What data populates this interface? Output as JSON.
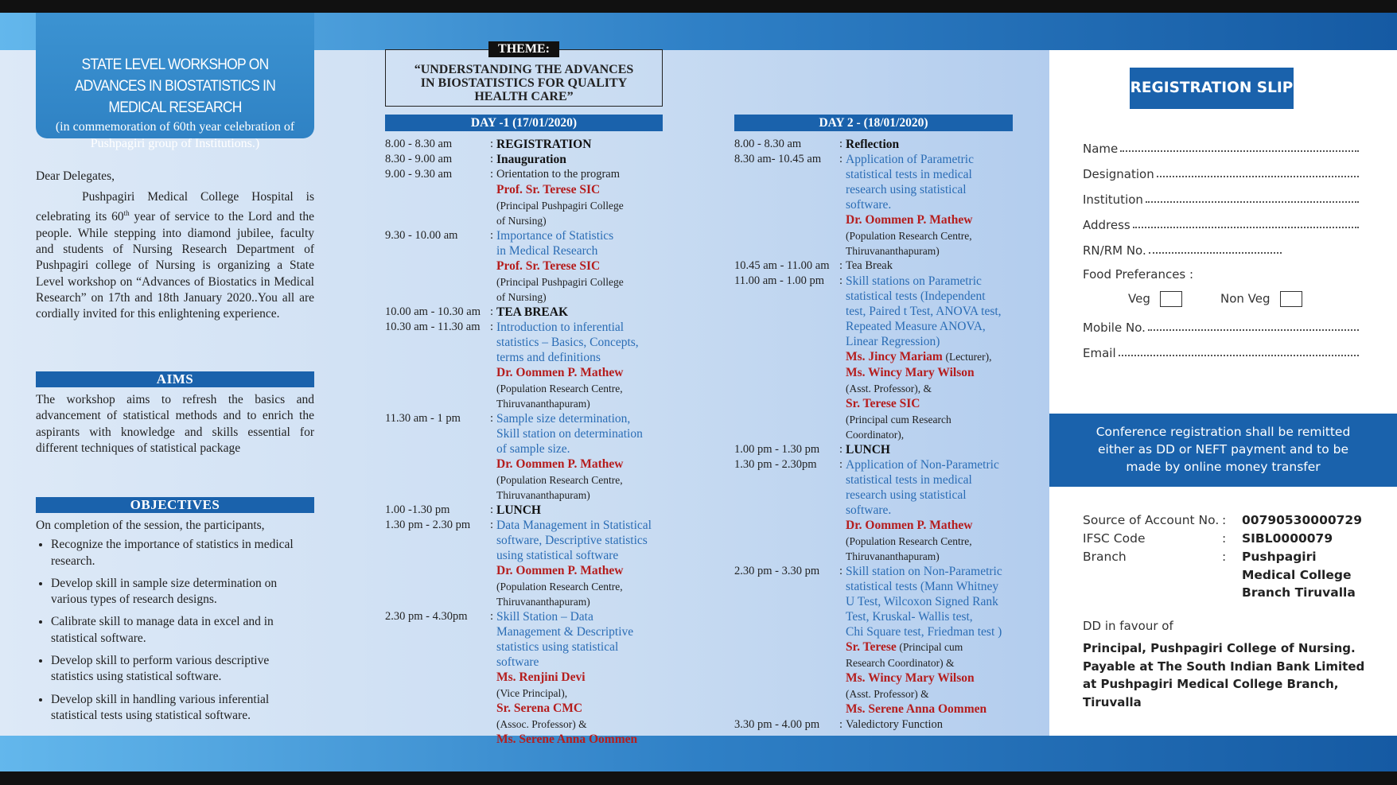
{
  "header": {
    "title": "STATE LEVEL WORKSHOP ON ADVANCES IN BIOSTATISTICS IN MEDICAL RESEARCH",
    "subtitle": "(in commemoration of 60th year celebration of Pushpagiri group of Institutions.)"
  },
  "letter": {
    "salutation": "Dear Delegates,",
    "body": [
      "Pushpagiri Medical College Hospital is celebrating its 60",
      "th",
      " year of service to the Lord and the people. While stepping into diamond jubilee, faculty and students of  Nursing Research Department of Pushpagiri college of Nursing is organizing a State Level workshop on “Advances of Biostatics in Medical Research” on 17th and 18th January 2020..You all are cordially invited for this enlightening experience."
    ]
  },
  "aims": {
    "heading": "AIMS",
    "text": "The workshop aims to refresh the basics and advancement of statistical methods and to enrich the aspirants with knowledge and skills essential for different techniques of statistical package"
  },
  "objectives": {
    "heading": "OBJECTIVES",
    "intro": "On completion of the session, the participants,",
    "items": [
      "Recognize the importance of statistics in medical research.",
      "Develop skill in sample size determination on various types of research designs.",
      "Calibrate skill to manage data in excel and in statistical software.",
      "Develop skill to perform various descriptive statistics using statistical software.",
      "Develop skill in handling various inferential statistical tests using statistical software."
    ]
  },
  "theme": {
    "label": "THEME:",
    "text": "“UNDERSTANDING THE ADVANCES IN BIOSTATISTICS FOR QUALITY HEALTH CARE”"
  },
  "day1": {
    "heading": "DAY -1 (17/01/2020)",
    "separator": ":",
    "sessions": [
      {
        "time": "8.00 - 8.30 am",
        "title": "REGISTRATION"
      },
      {
        "time": "8.30 - 9.00 am",
        "title": "Inauguration"
      },
      {
        "time": "9.00 - 9.30 am",
        "plain": "Orientation to the program",
        "speakers": [
          {
            "name": "Prof. Sr. Terese SIC",
            "role": [
              "(Principal Pushpagiri College",
              "of Nursing)"
            ]
          }
        ]
      },
      {
        "time": "9.30 - 10.00 am",
        "topic": [
          "Importance of Statistics",
          "in Medical Research"
        ],
        "speakers": [
          {
            "name": "Prof. Sr. Terese SIC",
            "role": [
              "(Principal Pushpagiri College",
              "of Nursing)"
            ]
          }
        ]
      },
      {
        "time": "10.00 am - 10.30 am",
        "title": "TEA BREAK"
      },
      {
        "time": "10.30 am - 11.30 am",
        "topic": [
          "Introduction to inferential",
          "statistics – Basics, Concepts,",
          "terms and definitions"
        ],
        "speakers": [
          {
            "name": "Dr. Oommen  P. Mathew",
            "role": [
              "(Population Research Centre,",
              "Thiruvananthapuram)"
            ]
          }
        ]
      },
      {
        "time": "11.30 am - 1 pm",
        "topic": [
          "Sample size determination,",
          "Skill station on determination",
          "of sample size."
        ],
        "speakers": [
          {
            "name": "Dr. Oommen  P. Mathew",
            "role": [
              "(Population Research Centre,",
              "Thiruvananthapuram)"
            ]
          }
        ]
      },
      {
        "time": "1.00 -1.30 pm",
        "title": "LUNCH"
      },
      {
        "time": "1.30 pm - 2.30 pm",
        "topic": [
          "Data Management in Statistical",
          "software, Descriptive statistics",
          "using statistical software"
        ],
        "speakers": [
          {
            "name": "Dr. Oommen  P. Mathew",
            "role": [
              "(Population Research Centre,",
              "Thiruvananthapuram)"
            ]
          }
        ]
      },
      {
        "time": "2.30 pm - 4.30pm",
        "topic": [
          "Skill Station – Data",
          "Management & Descriptive",
          "statistics using statistical",
          "software"
        ],
        "speakers": [
          {
            "name": "Ms. Renjini Devi",
            "role": [
              "(Vice Principal),"
            ]
          },
          {
            "name": "Sr. Serena CMC",
            "role": [
              "(Assoc. Professor) &"
            ]
          },
          {
            "name": "Ms. Serene Anna Oommen"
          }
        ]
      }
    ]
  },
  "day2": {
    "heading": "DAY 2  - (18/01/2020)",
    "separator": ":",
    "sessions": [
      {
        "time": "8.00 - 8.30 am",
        "title": "Reflection"
      },
      {
        "time": "8.30 am- 10.45 am",
        "topic": [
          "Application of Parametric",
          "statistical tests in medical",
          "research using statistical",
          "software."
        ],
        "speakers": [
          {
            "name": "Dr. Oommen  P. Mathew",
            "role": [
              "(Population Research Centre,",
              "Thiruvananthapuram)"
            ]
          }
        ]
      },
      {
        "time": "10.45 am - 11.00 am",
        "plain": "Tea Break"
      },
      {
        "time": "11.00 am - 1.00 pm",
        "topic": [
          "Skill stations on Parametric",
          "statistical tests (Independent",
          "test, Paired t Test, ANOVA test,",
          "Repeated Measure ANOVA,",
          "Linear Regression)"
        ],
        "speakers": [
          {
            "name": "Ms. Jincy Mariam",
            "suffix": "(Lecturer),"
          },
          {
            "name": "Ms. Wincy Mary Wilson",
            "role": [
              "(Asst. Professor), &"
            ]
          },
          {
            "name": "Sr. Terese SIC",
            "role": [
              "(Principal cum Research",
              "Coordinator),"
            ]
          }
        ]
      },
      {
        "time": "1.00 pm - 1.30 pm",
        "title": "LUNCH"
      },
      {
        "time": "1.30 pm - 2.30pm",
        "topic": [
          "Application of Non-Parametric",
          "statistical tests in medical",
          "research using statistical",
          "software."
        ],
        "speakers": [
          {
            "name": "Dr. Oommen  P. Mathew",
            "role": [
              "(Population Research Centre,",
              "Thiruvananthapuram)"
            ]
          }
        ]
      },
      {
        "time": "2.30 pm - 3.30 pm",
        "topic": [
          "Skill station on  Non-Parametric",
          "statistical tests (Mann Whitney",
          "U Test, Wilcoxon Signed Rank",
          "Test, Kruskal- Wallis test,",
          "Chi Square test, Friedman test )"
        ],
        "speakers": [
          {
            "name": "Sr. Terese",
            "suffix": "(Principal cum",
            "role": [
              "Research Coordinator) &"
            ]
          },
          {
            "name": "Ms. Wincy Mary Wilson",
            "role": [
              "(Asst. Professor) &"
            ]
          },
          {
            "name": "Ms. Serene Anna Oommen"
          }
        ]
      },
      {
        "time": "3.30 pm - 4.00 pm",
        "plain": "Valedictory Function"
      }
    ]
  },
  "registration": {
    "title": "REGISTRATION SLIP",
    "fields_top": [
      "Name",
      "Designation",
      "Institution",
      "Address",
      "RN/RM No."
    ],
    "food_label": "Food Preferances :",
    "food_options": [
      "Veg",
      "Non Veg"
    ],
    "fields_bottom": [
      "Mobile No.",
      "Email"
    ]
  },
  "note": "Conference registration shall be remitted either as DD or NEFT payment and to be made by online money transfer",
  "bank": {
    "separator": ":",
    "rows": [
      {
        "label": "Source of Account No.",
        "value": "00790530000729"
      },
      {
        "label": "IFSC Code",
        "value": "SIBL0000079"
      },
      {
        "label": "Branch",
        "value": "Pushpagiri Medical College Branch Tiruvalla"
      }
    ]
  },
  "dd": {
    "label": "DD in favour of",
    "payee": "Principal, Pushpagiri College of Nursing. Payable at The South Indian Bank Limited at Pushpagiri Medical College Branch, Tiruvalla"
  }
}
